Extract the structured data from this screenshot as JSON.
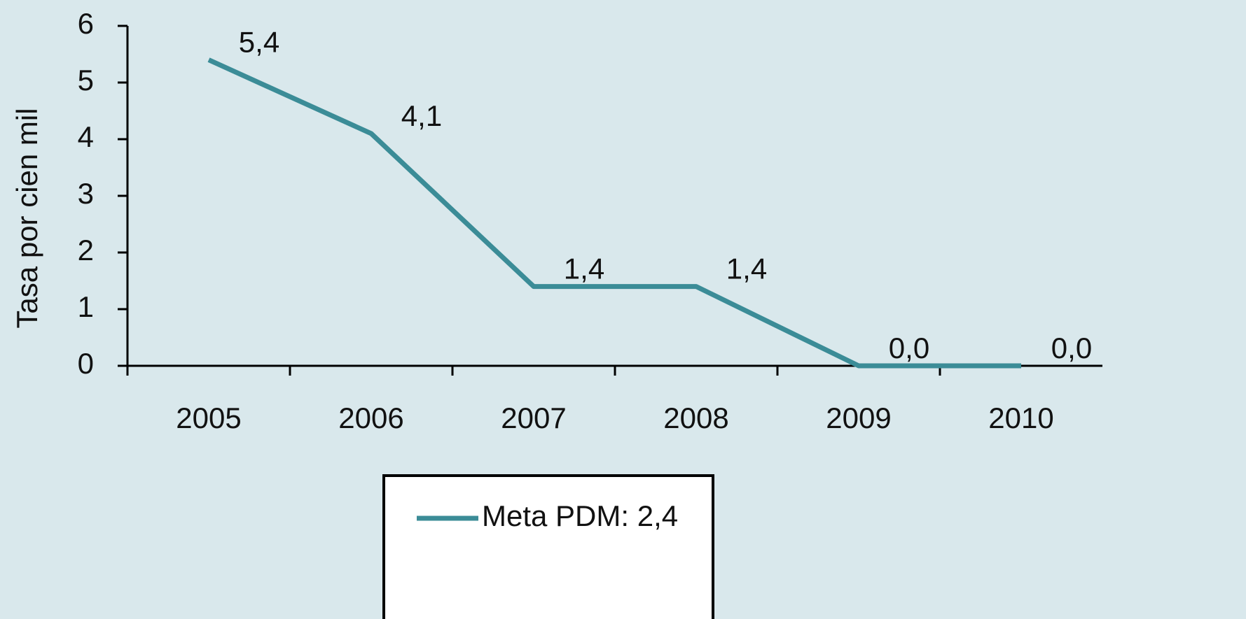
{
  "chart_data": {
    "type": "line",
    "y_label": "Tasa por cien mil",
    "categories": [
      "2005",
      "2006",
      "2007",
      "2008",
      "2009",
      "2010"
    ],
    "series": [
      {
        "name": "Meta PDM: 2,4",
        "color": "#3b8c97",
        "values": [
          5.4,
          4.1,
          1.4,
          1.4,
          0.0,
          0.0
        ],
        "value_labels": [
          "5,4",
          "4,1",
          "1,4",
          "1,4",
          "0,0",
          "0,0"
        ]
      }
    ],
    "ylim": [
      0,
      6
    ],
    "yticks": [
      0,
      1,
      2,
      3,
      4,
      5,
      6
    ]
  }
}
